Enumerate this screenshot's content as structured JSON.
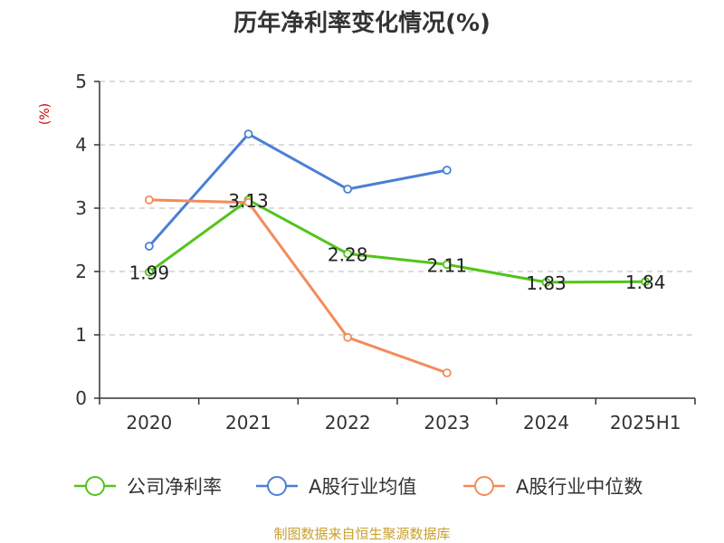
{
  "chart_data": {
    "type": "line",
    "title": "历年净利率变化情况(%)",
    "ylabel": "(%)",
    "categories": [
      "2020",
      "2021",
      "2022",
      "2023",
      "2024",
      "2025H1"
    ],
    "ylim": [
      0,
      5
    ],
    "yticks": [
      "0",
      "1",
      "2",
      "3",
      "4",
      "5"
    ],
    "grid": true,
    "legend_position": "bottom",
    "series": [
      {
        "name": "公司净利率",
        "color": "#52c41a",
        "values": [
          1.99,
          3.13,
          2.28,
          2.11,
          1.83,
          1.84
        ],
        "labels": [
          "1.99",
          "3.13",
          "2.28",
          "2.11",
          "1.83",
          "1.84"
        ]
      },
      {
        "name": "A股行业均值",
        "color": "#4a7fd6",
        "values": [
          2.4,
          4.17,
          3.3,
          3.6,
          null,
          null
        ]
      },
      {
        "name": "A股行业中位数",
        "color": "#f28c5a",
        "values": [
          3.13,
          3.09,
          0.96,
          0.4,
          null,
          null
        ]
      }
    ],
    "ylabel_color": "#cc0000",
    "source": "制图数据来自恒生聚源数据库",
    "source_color": "#c8a030"
  }
}
